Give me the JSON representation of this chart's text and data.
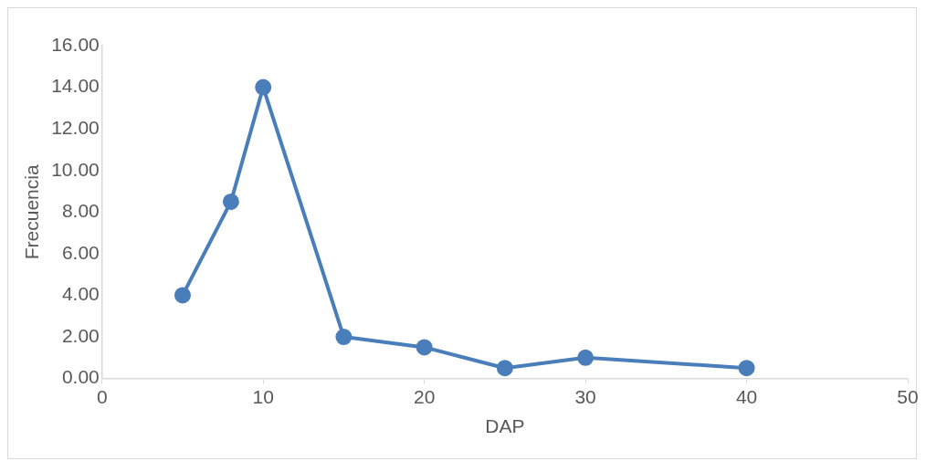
{
  "chart_data": {
    "type": "line",
    "xlabel": "DAP",
    "ylabel": "Frecuencia",
    "x": [
      5,
      8,
      10,
      15,
      20,
      25,
      30,
      40
    ],
    "series": [
      {
        "color": "#4a7ebb",
        "values": [
          4,
          8.5,
          14,
          2,
          1.5,
          0.5,
          1,
          0.5
        ]
      }
    ],
    "xlim": [
      0,
      50
    ],
    "xticks": [
      0,
      10,
      20,
      30,
      40,
      50
    ],
    "ylim": [
      0,
      16
    ],
    "yticks": [
      {
        "value": 0,
        "label": "0.00"
      },
      {
        "value": 2,
        "label": "2.00"
      },
      {
        "value": 4,
        "label": "4.00"
      },
      {
        "value": 6,
        "label": "6.00"
      },
      {
        "value": 8,
        "label": "8.00"
      },
      {
        "value": 10,
        "label": "10.00"
      },
      {
        "value": 12,
        "label": "12.00"
      },
      {
        "value": 14,
        "label": "14.00"
      },
      {
        "value": 16,
        "label": "16.00"
      }
    ],
    "grid": false,
    "legend": false,
    "marker": "circle",
    "line_style": "solid"
  }
}
